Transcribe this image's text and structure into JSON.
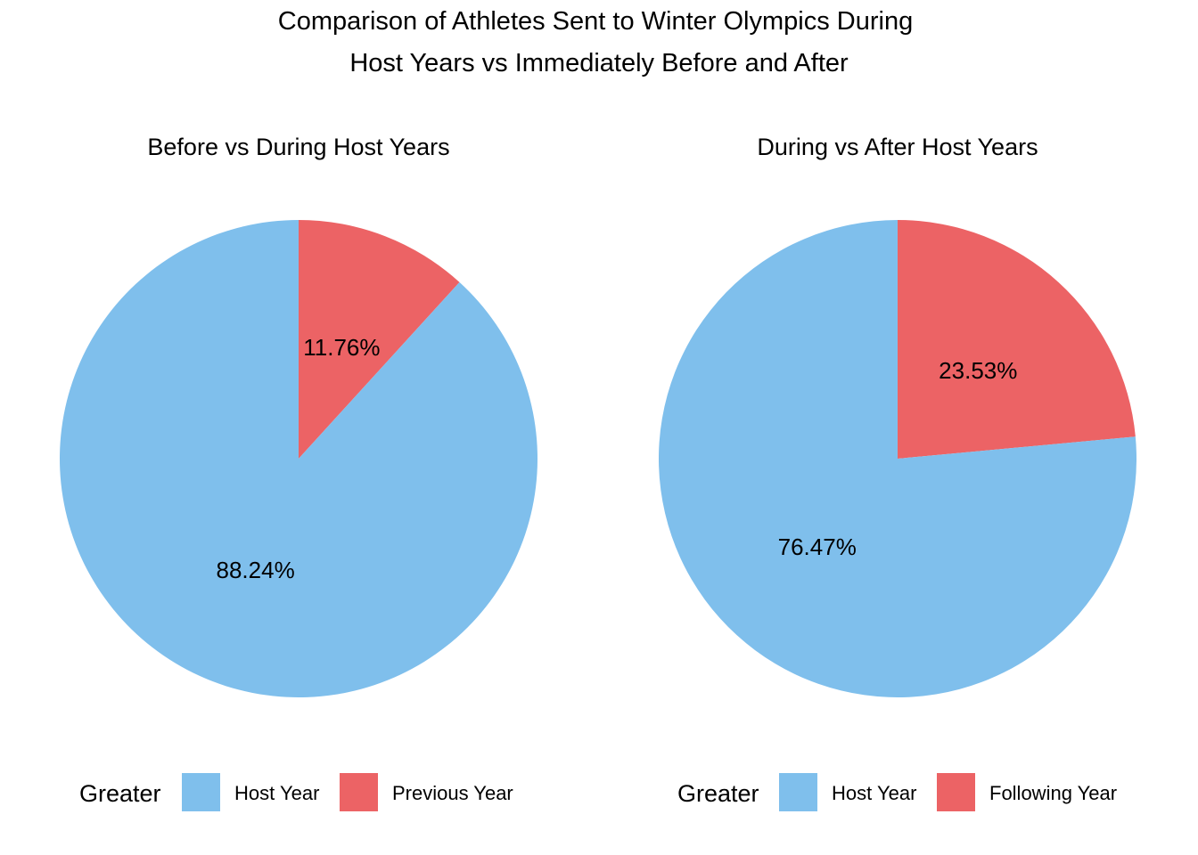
{
  "title": {
    "line1": "Comparison of Athletes Sent to Winter Olympics During",
    "line2": "Host Years vs Immediately Before and After"
  },
  "colors": {
    "host": "#7fbfec",
    "other": "#ec6365"
  },
  "chart_data": [
    {
      "type": "pie",
      "title": "Before vs During Host Years",
      "legend_title": "Greater",
      "legend_position": "bottom",
      "slices": [
        {
          "label": "Previous Year",
          "value": 11.76,
          "text": "11.76%",
          "color": "#ec6365"
        },
        {
          "label": "Host Year",
          "value": 88.24,
          "text": "88.24%",
          "color": "#7fbfec"
        }
      ],
      "legend": [
        "Host Year",
        "Previous Year"
      ]
    },
    {
      "type": "pie",
      "title": "During vs After Host Years",
      "legend_title": "Greater",
      "legend_position": "bottom",
      "slices": [
        {
          "label": "Following Year",
          "value": 23.53,
          "text": "23.53%",
          "color": "#ec6365"
        },
        {
          "label": "Host Year",
          "value": 76.47,
          "text": "76.47%",
          "color": "#7fbfec"
        }
      ],
      "legend": [
        "Host Year",
        "Following Year"
      ]
    }
  ]
}
